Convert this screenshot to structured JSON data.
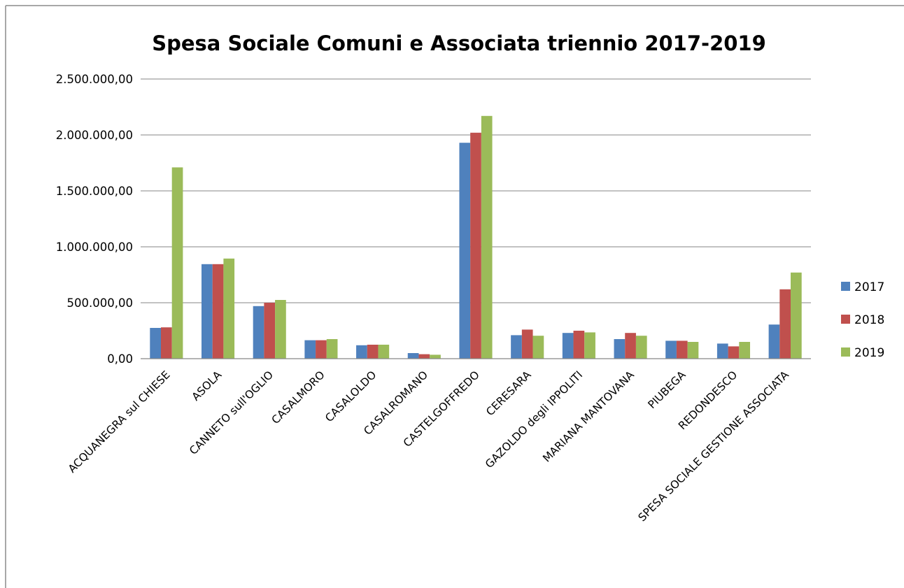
{
  "chart_data": {
    "type": "bar",
    "title": "Spesa Sociale Comuni e Associata triennio 2017-2019",
    "xlabel": "",
    "ylabel": "",
    "ylim": [
      0,
      2500000
    ],
    "yticks": [
      "0,00",
      "500.000,00",
      "1.000.000,00",
      "1.500.000,00",
      "2.000.000,00",
      "2.500.000,00"
    ],
    "ytick_values": [
      0,
      500000,
      1000000,
      1500000,
      2000000,
      2500000
    ],
    "grid": true,
    "legend_position": "right",
    "categories": [
      "ACQUANEGRA sul CHIESE",
      "ASOLA",
      "CANNETO sull'OGLIO",
      "CASALMORO",
      "CASALOLDO",
      "CASALROMANO",
      "CASTELGOFFREDO",
      "CERESARA",
      "GAZOLDO degli IPPOLITI",
      "MARIANA MANTOVANA",
      "PIUBEGA",
      "REDONDESCO",
      "SPESA SOCIALE GESTIONE ASSOCIATA"
    ],
    "series": [
      {
        "name": "2017",
        "color": "#4f81bd",
        "values": [
          275000,
          845000,
          470000,
          165000,
          120000,
          50000,
          1930000,
          210000,
          230000,
          175000,
          160000,
          135000,
          305000
        ]
      },
      {
        "name": "2018",
        "color": "#c0504d",
        "values": [
          280000,
          845000,
          500000,
          165000,
          125000,
          40000,
          2020000,
          260000,
          250000,
          230000,
          160000,
          110000,
          620000
        ]
      },
      {
        "name": "2019",
        "color": "#9bbb59",
        "values": [
          1710000,
          895000,
          525000,
          175000,
          125000,
          35000,
          2170000,
          205000,
          235000,
          205000,
          150000,
          150000,
          770000
        ]
      }
    ]
  }
}
